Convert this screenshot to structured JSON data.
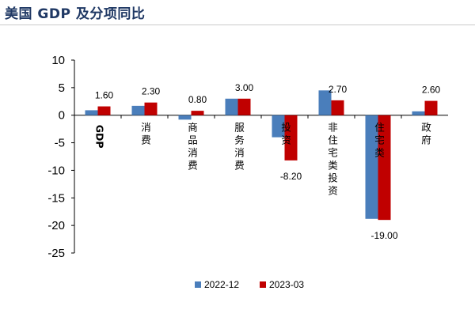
{
  "header": {
    "title": "美国 GDP 及分项同比"
  },
  "chart_data": {
    "type": "bar",
    "title": "美国 GDP 及分项同比",
    "xlabel": "",
    "ylabel": "",
    "ylim": [
      -25,
      10
    ],
    "yticks": [
      10,
      5,
      0,
      -5,
      -10,
      -15,
      -20,
      -25
    ],
    "categories": [
      "GDP",
      "消费",
      "商品消费",
      "服务消费",
      "投资",
      "非住宅类投资",
      "住宅类",
      "政府"
    ],
    "series": [
      {
        "name": "2022-12",
        "color": "#4a7ebb",
        "values": [
          0.9,
          1.7,
          -0.8,
          3.0,
          -4.0,
          4.5,
          -18.8,
          0.7
        ]
      },
      {
        "name": "2023-03",
        "color": "#c00000",
        "values": [
          1.6,
          2.3,
          0.8,
          3.0,
          -8.2,
          2.7,
          -19.0,
          2.6
        ]
      }
    ],
    "data_labels": [
      "1.60",
      "2.30",
      "0.80",
      "3.00",
      "-8.20",
      "2.70",
      "-19.00",
      "2.60"
    ],
    "legend": "bottom",
    "grid": false
  }
}
